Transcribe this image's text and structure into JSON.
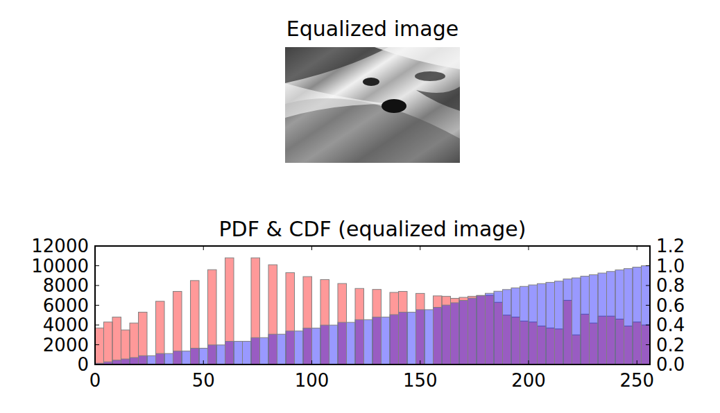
{
  "image": {
    "title": "Equalized image"
  },
  "chart_data": {
    "type": "bar",
    "title": "PDF & CDF (equalized image)",
    "bins": [
      0,
      4,
      8,
      12,
      16,
      20,
      24,
      28,
      32,
      36,
      40,
      44,
      48,
      52,
      56,
      60,
      64,
      68,
      72,
      76,
      80,
      84,
      88,
      92,
      96,
      100,
      104,
      108,
      112,
      116,
      120,
      124,
      128,
      132,
      136,
      140,
      144,
      148,
      152,
      156,
      160,
      164,
      168,
      172,
      176,
      180,
      184,
      188,
      192,
      196,
      200,
      204,
      208,
      212,
      216,
      220,
      224,
      228,
      232,
      236,
      240,
      244,
      248,
      252,
      256
    ],
    "series": [
      {
        "color": "#ff0000",
        "values": [
          3700,
          4300,
          4800,
          3500,
          4200,
          5300,
          0,
          6400,
          0,
          7400,
          0,
          8500,
          0,
          9600,
          0,
          10800,
          0,
          0,
          10800,
          0,
          10100,
          0,
          9300,
          0,
          8900,
          0,
          8600,
          0,
          8200,
          0,
          7700,
          0,
          7600,
          0,
          7300,
          7400,
          0,
          7200,
          0,
          6950,
          6900,
          6700,
          6800,
          6900,
          7000,
          7000,
          6300,
          5000,
          4800,
          4400,
          4300,
          3900,
          3700,
          3600,
          6500,
          3000,
          5100,
          4200,
          4900,
          4900,
          4600,
          3900,
          4300,
          4000
        ]
      },
      {
        "color": "#0000ff",
        "axis": "y2",
        "values": [
          0.013,
          0.027,
          0.044,
          0.056,
          0.07,
          0.089,
          0.089,
          0.111,
          0.111,
          0.136,
          0.136,
          0.165,
          0.165,
          0.198,
          0.198,
          0.235,
          0.235,
          0.235,
          0.272,
          0.272,
          0.307,
          0.307,
          0.339,
          0.339,
          0.369,
          0.369,
          0.399,
          0.399,
          0.427,
          0.427,
          0.454,
          0.454,
          0.48,
          0.48,
          0.505,
          0.53,
          0.53,
          0.555,
          0.555,
          0.579,
          0.602,
          0.625,
          0.649,
          0.672,
          0.696,
          0.721,
          0.742,
          0.759,
          0.776,
          0.791,
          0.806,
          0.819,
          0.832,
          0.844,
          0.866,
          0.877,
          0.894,
          0.909,
          0.926,
          0.942,
          0.958,
          0.971,
          0.986,
          1.0
        ]
      }
    ],
    "xlim": [
      0,
      256
    ],
    "xticks": [
      0,
      50,
      100,
      150,
      200,
      250
    ],
    "ylim": [
      0,
      12000
    ],
    "yticks": [
      0,
      2000,
      4000,
      6000,
      8000,
      10000,
      12000
    ],
    "y2lim": [
      0,
      1.2
    ],
    "y2ticks": [
      {
        "value": 0,
        "label": "0.0"
      },
      {
        "value": 0.2,
        "label": "0.2"
      },
      {
        "value": 0.4,
        "label": "0.4"
      },
      {
        "value": 0.6,
        "label": "0.6"
      },
      {
        "value": 0.8,
        "label": "0.8"
      },
      {
        "value": 1.0,
        "label": "1.0"
      },
      {
        "value": 1.2,
        "label": "1.2"
      }
    ],
    "grid": false
  }
}
